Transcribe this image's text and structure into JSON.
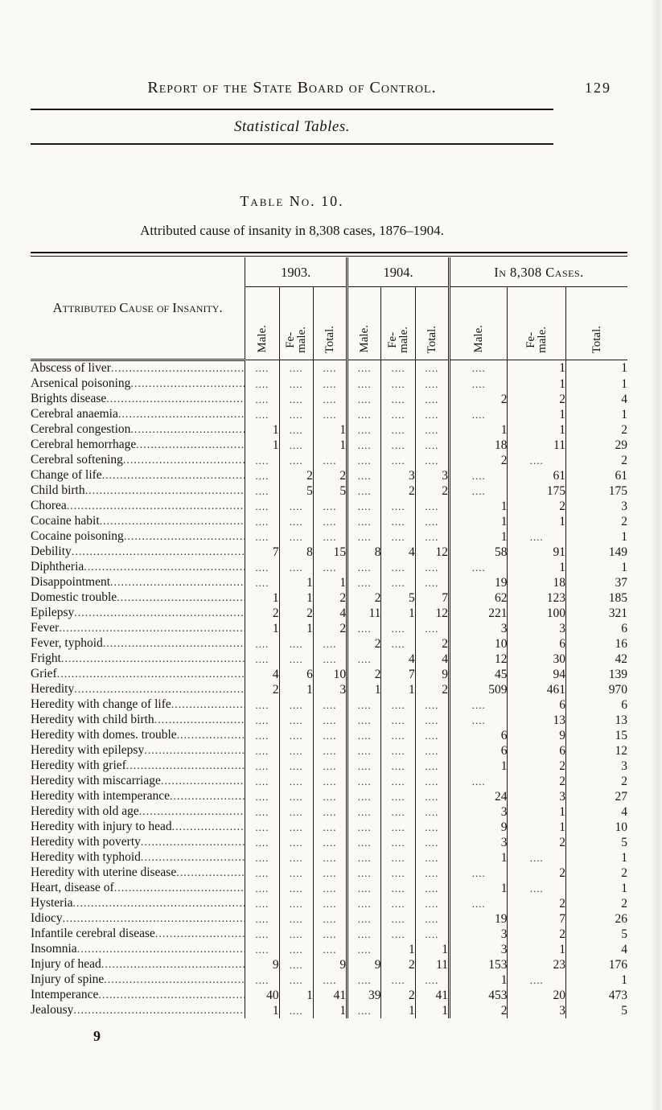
{
  "page": {
    "header_title": "Report of the State Board of Control.",
    "page_number": "129",
    "section_title": "Statistical Tables.",
    "table_no": "Table No. 10.",
    "table_caption": "Attributed cause of insanity in 8,308 cases, 1876–1904.",
    "footer_mark": "9"
  },
  "table": {
    "cause_header": "Attributed Cause of Insanity.",
    "groups": [
      {
        "label": "1903."
      },
      {
        "label": "1904."
      },
      {
        "label": "In 8,308 Cases."
      }
    ],
    "sub_cols": [
      "Male.",
      "Fe-\nmale.",
      "Total."
    ],
    "dots": "....",
    "rows": [
      {
        "label": "Abscess of liver",
        "v": [
          "",
          "",
          "",
          "",
          "",
          "",
          "",
          "1",
          "1"
        ]
      },
      {
        "label": "Arsenical poisoning",
        "v": [
          "",
          "",
          "",
          "",
          "",
          "",
          "",
          "1",
          "1"
        ]
      },
      {
        "label": "Brights disease",
        "v": [
          "",
          "",
          "",
          "",
          "",
          "",
          "2",
          "2",
          "4"
        ]
      },
      {
        "label": "Cerebral anaemia",
        "v": [
          "",
          "",
          "",
          "",
          "",
          "",
          "",
          "1",
          "1"
        ]
      },
      {
        "label": "Cerebral congestion",
        "v": [
          "1",
          "",
          "1",
          "",
          "",
          "",
          "1",
          "1",
          "2"
        ]
      },
      {
        "label": "Cerebral hemorrhage",
        "v": [
          "1",
          "",
          "1",
          "",
          "",
          "",
          "18",
          "11",
          "29"
        ]
      },
      {
        "label": "Cerebral softening",
        "v": [
          "",
          "",
          "",
          "",
          "",
          "",
          "2",
          "",
          "2"
        ]
      },
      {
        "label": "Change of life",
        "v": [
          "",
          "2",
          "2",
          "",
          "3",
          "3",
          "",
          "61",
          "61"
        ]
      },
      {
        "label": "Child birth",
        "v": [
          "",
          "5",
          "5",
          "",
          "2",
          "2",
          "",
          "175",
          "175"
        ]
      },
      {
        "label": "Chorea",
        "v": [
          "",
          "",
          "",
          "",
          "",
          "",
          "1",
          "2",
          "3"
        ]
      },
      {
        "label": "Cocaine habit",
        "v": [
          "",
          "",
          "",
          "",
          "",
          "",
          "1",
          "1",
          "2"
        ]
      },
      {
        "label": "Cocaine poisoning",
        "v": [
          "",
          "",
          "",
          "",
          "",
          "",
          "1",
          "",
          "1"
        ]
      },
      {
        "label": "Debility",
        "v": [
          "7",
          "8",
          "15",
          "8",
          "4",
          "12",
          "58",
          "91",
          "149"
        ]
      },
      {
        "label": "Diphtheria",
        "v": [
          "",
          "",
          "",
          "",
          "",
          "",
          "",
          "1",
          "1"
        ]
      },
      {
        "label": "Disappointment",
        "v": [
          "",
          "1",
          "1",
          "",
          "",
          "",
          "19",
          "18",
          "37"
        ]
      },
      {
        "label": "Domestic trouble",
        "v": [
          "1",
          "1",
          "2",
          "2",
          "5",
          "7",
          "62",
          "123",
          "185"
        ]
      },
      {
        "label": "Epilepsy",
        "v": [
          "2",
          "2",
          "4",
          "11",
          "1",
          "12",
          "221",
          "100",
          "321"
        ]
      },
      {
        "label": "Fever",
        "v": [
          "1",
          "1",
          "2",
          "",
          "",
          "",
          "3",
          "3",
          "6"
        ]
      },
      {
        "label": "Fever, typhoid",
        "v": [
          "",
          "",
          "",
          "2",
          "",
          "2",
          "10",
          "6",
          "16"
        ]
      },
      {
        "label": "Fright",
        "v": [
          "",
          "",
          "",
          "",
          "4",
          "4",
          "12",
          "30",
          "42"
        ]
      },
      {
        "label": "Grief",
        "v": [
          "4",
          "6",
          "10",
          "2",
          "7",
          "9",
          "45",
          "94",
          "139"
        ]
      },
      {
        "label": "Heredity",
        "v": [
          "2",
          "1",
          "3",
          "1",
          "1",
          "2",
          "509",
          "461",
          "970"
        ]
      },
      {
        "label": "Heredity with change of life",
        "v": [
          "",
          "",
          "",
          "",
          "",
          "",
          "",
          "6",
          "6"
        ]
      },
      {
        "label": "Heredity with child birth",
        "v": [
          "",
          "",
          "",
          "",
          "",
          "",
          "",
          "13",
          "13"
        ]
      },
      {
        "label": "Heredity with domes. trouble",
        "v": [
          "",
          "",
          "",
          "",
          "",
          "",
          "6",
          "9",
          "15"
        ]
      },
      {
        "label": "Heredity with epilepsy",
        "v": [
          "",
          "",
          "",
          "",
          "",
          "",
          "6",
          "6",
          "12"
        ]
      },
      {
        "label": "Heredity with grief",
        "v": [
          "",
          "",
          "",
          "",
          "",
          "",
          "1",
          "2",
          "3"
        ]
      },
      {
        "label": "Heredity with miscarriage",
        "v": [
          "",
          "",
          "",
          "",
          "",
          "",
          "",
          "2",
          "2"
        ]
      },
      {
        "label": "Heredity with intemperance",
        "v": [
          "",
          "",
          "",
          "",
          "",
          "",
          "24",
          "3",
          "27"
        ]
      },
      {
        "label": "Heredity with old age",
        "v": [
          "",
          "",
          "",
          "",
          "",
          "",
          "3",
          "1",
          "4"
        ]
      },
      {
        "label": "Heredity with injury to head",
        "v": [
          "",
          "",
          "",
          "",
          "",
          "",
          "9",
          "1",
          "10"
        ]
      },
      {
        "label": "Heredity with poverty",
        "v": [
          "",
          "",
          "",
          "",
          "",
          "",
          "3",
          "2",
          "5"
        ]
      },
      {
        "label": "Heredity with typhoid",
        "v": [
          "",
          "",
          "",
          "",
          "",
          "",
          "1",
          "",
          "1"
        ]
      },
      {
        "label": "Heredity with uterine disease",
        "v": [
          "",
          "",
          "",
          "",
          "",
          "",
          "",
          "2",
          "2"
        ]
      },
      {
        "label": "Heart, disease of",
        "v": [
          "",
          "",
          "",
          "",
          "",
          "",
          "1",
          "",
          "1"
        ]
      },
      {
        "label": "Hysteria",
        "v": [
          "",
          "",
          "",
          "",
          "",
          "",
          "",
          "2",
          "2"
        ]
      },
      {
        "label": "Idiocy",
        "v": [
          "",
          "",
          "",
          "",
          "",
          "",
          "19",
          "7",
          "26"
        ]
      },
      {
        "label": "Infantile cerebral disease",
        "v": [
          "",
          "",
          "",
          "",
          "",
          "",
          "3",
          "2",
          "5"
        ]
      },
      {
        "label": "Insomnia",
        "v": [
          "",
          "",
          "",
          "",
          "1",
          "1",
          "3",
          "1",
          "4"
        ]
      },
      {
        "label": "Injury of head",
        "v": [
          "9",
          "",
          "9",
          "9",
          "2",
          "11",
          "153",
          "23",
          "176"
        ]
      },
      {
        "label": "Injury of spine",
        "v": [
          "",
          "",
          "",
          "",
          "",
          "",
          "1",
          "",
          "1"
        ]
      },
      {
        "label": "Intemperance",
        "v": [
          "40",
          "1",
          "41",
          "39",
          "2",
          "41",
          "453",
          "20",
          "473"
        ]
      },
      {
        "label": "Jealousy",
        "v": [
          "1",
          "",
          "1",
          "",
          "1",
          "1",
          "2",
          "3",
          "5"
        ]
      }
    ]
  }
}
